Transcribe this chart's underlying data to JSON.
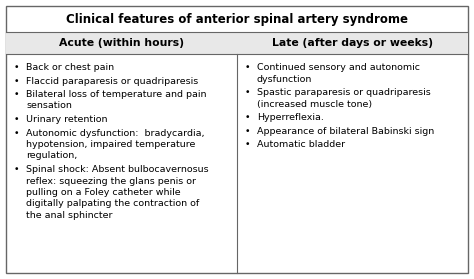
{
  "title": "Clinical features of anterior spinal artery syndrome",
  "col1_header": "Acute (within hours)",
  "col2_header": "Late (after days or weeks)",
  "col1_items": [
    [
      "Back or chest pain"
    ],
    [
      "Flaccid paraparesis or quadriparesis"
    ],
    [
      "Bilateral loss of temperature and pain",
      "sensation"
    ],
    [
      "Urinary retention"
    ],
    [
      "Autonomic dysfunction:  bradycardia,",
      "hypotension, impaired temperature",
      "regulation,"
    ],
    [
      "Spinal shock: Absent bulbocavernosus",
      "reflex: squeezing the glans penis or",
      "pulling on a Foley catheter while",
      "digitally palpating the contraction of",
      "the anal sphincter"
    ]
  ],
  "col2_items": [
    [
      "Continued sensory and autonomic",
      "dysfunction"
    ],
    [
      "Spastic paraparesis or quadriparesis",
      "(increased muscle tone)"
    ],
    [
      "Hyperreflexia."
    ],
    [
      "Appearance of bilateral Babinski sign"
    ],
    [
      "Automatic bladder"
    ]
  ],
  "bg_color": "#ffffff",
  "header_bg": "#e8e8e8",
  "border_color": "#666666",
  "title_fontsize": 8.5,
  "header_fontsize": 7.8,
  "body_fontsize": 6.8
}
